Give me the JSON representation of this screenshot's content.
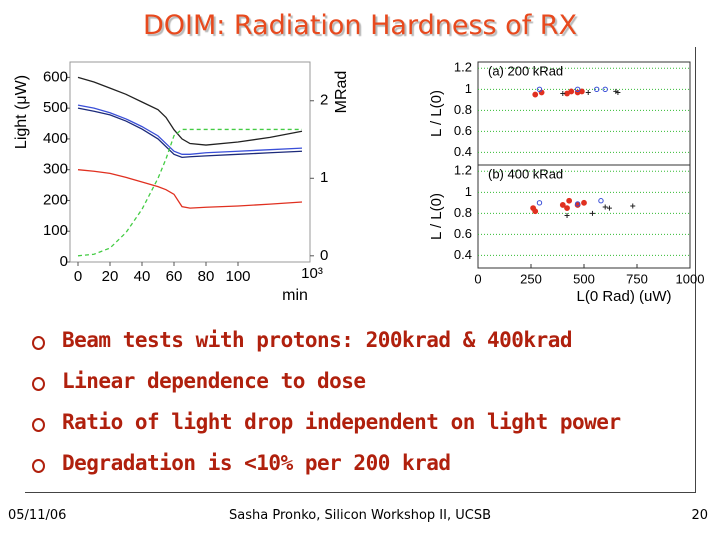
{
  "title": "DOIM: Radiation Hardness of RX",
  "chart_data": [
    {
      "type": "line",
      "ylabel": "Light (μW)",
      "xlabel": "min",
      "x_exponent": "10³",
      "y2label": "MRad",
      "x": [
        0,
        10,
        20,
        30,
        40,
        50,
        55,
        60,
        65,
        70,
        80,
        100,
        120,
        140
      ],
      "xlim": [
        -5,
        145
      ],
      "xticks": [
        0,
        20,
        40,
        60,
        80,
        100
      ],
      "ylim": [
        0,
        650
      ],
      "yticks": [
        0,
        100,
        200,
        300,
        400,
        500,
        600
      ],
      "y2lim": [
        -0.08,
        2.5
      ],
      "y2ticks": [
        0,
        1,
        2
      ],
      "series": [
        {
          "color": "#222222",
          "values": [
            600,
            585,
            565,
            545,
            520,
            495,
            470,
            430,
            400,
            385,
            380,
            390,
            405,
            425
          ]
        },
        {
          "color": "#3a4fd8",
          "values": [
            510,
            500,
            485,
            465,
            440,
            410,
            385,
            360,
            350,
            350,
            355,
            360,
            365,
            370
          ]
        },
        {
          "color": "#1c2a7a",
          "values": [
            500,
            490,
            478,
            458,
            432,
            400,
            375,
            350,
            340,
            342,
            345,
            350,
            355,
            360
          ]
        },
        {
          "color": "#e03020",
          "values": [
            300,
            295,
            288,
            275,
            260,
            245,
            235,
            220,
            180,
            175,
            178,
            182,
            188,
            195
          ]
        },
        {
          "color": "#44cc44",
          "dashed": true,
          "axis": "y2",
          "values": [
            0,
            0.02,
            0.1,
            0.3,
            0.6,
            1.0,
            1.25,
            1.55,
            1.63,
            1.63,
            1.63,
            1.63,
            1.63,
            1.63
          ]
        }
      ]
    },
    {
      "type": "scatter",
      "title": "(a) 200 kRad",
      "ylabel": "L / L(0)",
      "xlim": [
        0,
        1000
      ],
      "ylim": [
        0.28,
        1.26
      ],
      "yticks": [
        0.4,
        0.6,
        0.8,
        1,
        1.2
      ],
      "grid": true,
      "grid_color": "#33bb33",
      "series": [
        {
          "color": "#e03020",
          "marker": "dot",
          "x": [
            270,
            300,
            420,
            440,
            470,
            490
          ],
          "values": [
            0.95,
            0.97,
            0.96,
            0.98,
            0.97,
            0.98
          ]
        },
        {
          "color": "#3a4fd8",
          "marker": "ring",
          "x": [
            290,
            470,
            560,
            600
          ],
          "values": [
            1.0,
            1.0,
            1.0,
            1.0
          ]
        },
        {
          "color": "#222222",
          "marker": "plus",
          "x": [
            400,
            520,
            650,
            660
          ],
          "values": [
            0.96,
            0.97,
            0.98,
            0.97
          ]
        }
      ]
    },
    {
      "type": "scatter",
      "title": "(b) 400 kRad",
      "ylabel": "L / L(0)",
      "xlabel": "L(0 Rad) (uW)",
      "xlim": [
        0,
        1000
      ],
      "xticks": [
        0,
        250,
        500,
        750,
        1000
      ],
      "ylim": [
        0.28,
        1.26
      ],
      "yticks": [
        0.4,
        0.6,
        0.8,
        1,
        1.2
      ],
      "grid": true,
      "grid_color": "#33bb33",
      "series": [
        {
          "color": "#e03020",
          "marker": "dot",
          "x": [
            260,
            270,
            400,
            420,
            430,
            470,
            500
          ],
          "values": [
            0.85,
            0.82,
            0.88,
            0.85,
            0.92,
            0.88,
            0.9
          ]
        },
        {
          "color": "#3a4fd8",
          "marker": "ring",
          "x": [
            290,
            470,
            580
          ],
          "values": [
            0.9,
            0.89,
            0.92
          ]
        },
        {
          "color": "#222222",
          "marker": "plus",
          "x": [
            420,
            540,
            600,
            620,
            730
          ],
          "values": [
            0.78,
            0.8,
            0.86,
            0.85,
            0.87
          ]
        }
      ]
    }
  ],
  "bullets": [
    "Beam tests with protons: 200krad & 400krad",
    "Linear dependence to dose",
    "Ratio of light drop independent on light power",
    "Degradation is <10% per 200 krad"
  ],
  "footer": {
    "date": "05/11/06",
    "center": "Sasha Pronko, Silicon Workshop II, UCSB",
    "page": "20"
  }
}
